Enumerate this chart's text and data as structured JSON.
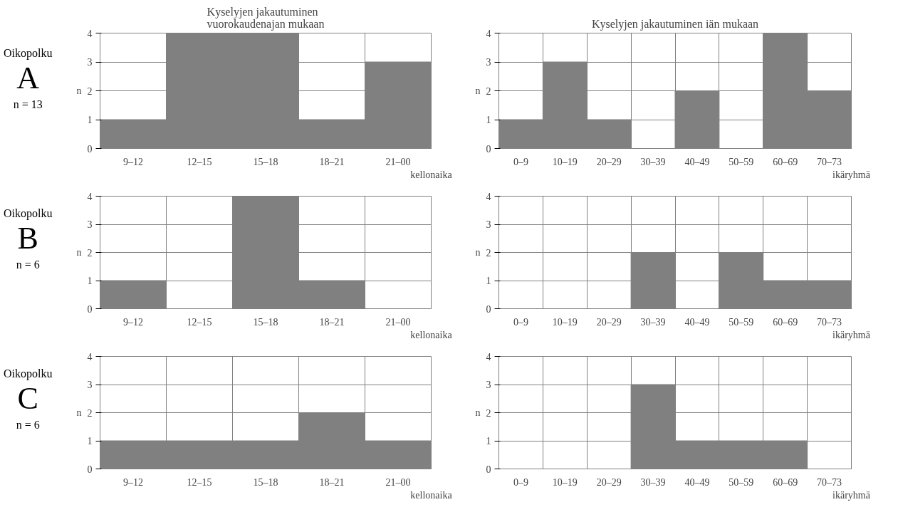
{
  "chart_data": [
    {
      "type": "bar",
      "title": "Kyselyjen jakautuminen\nvuorokaudenajan mukaan",
      "xlabel": "kellonaika",
      "ylabel": "n",
      "categories": [
        "9–12",
        "12–15",
        "15–18",
        "18–21",
        "21–00"
      ],
      "values": [
        1,
        4,
        4,
        1,
        3
      ],
      "color": "#808080",
      "ylim": [
        0,
        4
      ],
      "yticks": [
        0,
        1,
        2,
        3,
        4
      ],
      "grid": true,
      "annotations": [
        "Oikopolku",
        "A",
        "n = 13"
      ]
    },
    {
      "type": "bar",
      "title": "Kyselyjen jakautuminen iän mukaan",
      "xlabel": "ikäryhmä",
      "ylabel": "n",
      "categories": [
        "0–9",
        "10–19",
        "20–29",
        "30–39",
        "40–49",
        "50–59",
        "60–69",
        "70–73"
      ],
      "values": [
        1,
        3,
        1,
        0,
        2,
        0,
        4,
        2
      ],
      "color": "#808080",
      "ylim": [
        0,
        4
      ],
      "yticks": [
        0,
        1,
        2,
        3,
        4
      ],
      "grid": true
    },
    {
      "type": "bar",
      "xlabel": "kellonaika",
      "ylabel": "n",
      "categories": [
        "9–12",
        "12–15",
        "15–18",
        "18–21",
        "21–00"
      ],
      "values": [
        1,
        0,
        4,
        1,
        0
      ],
      "color": "#808080",
      "ylim": [
        0,
        4
      ],
      "yticks": [
        0,
        1,
        2,
        3,
        4
      ],
      "grid": true,
      "annotations": [
        "Oikopolku",
        "B",
        "n = 6"
      ]
    },
    {
      "type": "bar",
      "xlabel": "ikäryhmä",
      "ylabel": "n",
      "categories": [
        "0–9",
        "10–19",
        "20–29",
        "30–39",
        "40–49",
        "50–59",
        "60–69",
        "70–73"
      ],
      "values": [
        0,
        0,
        0,
        2,
        0,
        2,
        1,
        1
      ],
      "color": "#808080",
      "ylim": [
        0,
        4
      ],
      "yticks": [
        0,
        1,
        2,
        3,
        4
      ],
      "grid": true
    },
    {
      "type": "bar",
      "xlabel": "kellonaika",
      "ylabel": "n",
      "categories": [
        "9–12",
        "12–15",
        "15–18",
        "18–21",
        "21–00"
      ],
      "values": [
        1,
        1,
        1,
        2,
        1
      ],
      "color": "#808080",
      "ylim": [
        0,
        4
      ],
      "yticks": [
        0,
        1,
        2,
        3,
        4
      ],
      "grid": true,
      "annotations": [
        "Oikopolku",
        "C",
        "n = 6"
      ]
    },
    {
      "type": "bar",
      "xlabel": "ikäryhmä",
      "ylabel": "n",
      "categories": [
        "0–9",
        "10–19",
        "20–29",
        "30–39",
        "40–49",
        "50–59",
        "60–69",
        "70–73"
      ],
      "values": [
        0,
        0,
        0,
        3,
        1,
        1,
        1,
        0
      ],
      "color": "#808080",
      "ylim": [
        0,
        4
      ],
      "yticks": [
        0,
        1,
        2,
        3,
        4
      ],
      "grid": true
    }
  ]
}
